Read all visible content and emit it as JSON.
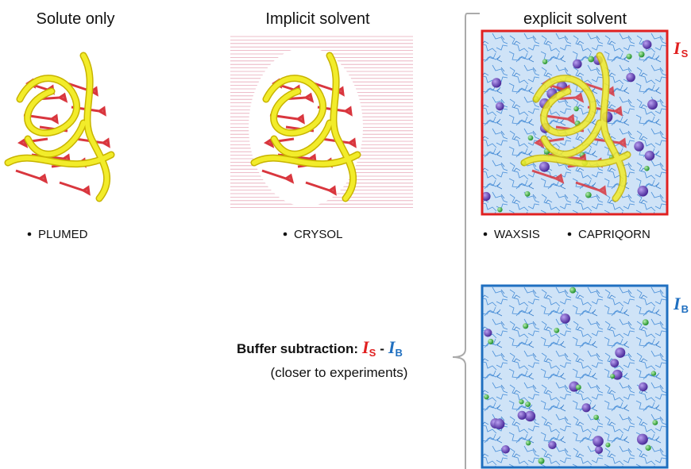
{
  "panels": [
    {
      "title": "Solute only",
      "methods": [
        "PLUMED"
      ]
    },
    {
      "title": "Implicit solvent",
      "methods": [
        "CRYSOL"
      ]
    },
    {
      "title": "explicit solvent",
      "methods": [
        "WAXSIS",
        "CAPRIQORN"
      ]
    }
  ],
  "boxes": [
    {
      "symbol": "I",
      "subscript": "S"
    },
    {
      "symbol": "I",
      "subscript": "B"
    }
  ],
  "buffer_subtraction": {
    "label": "Buffer subtraction:",
    "operator": "-",
    "note": "(closer to experiments)"
  }
}
